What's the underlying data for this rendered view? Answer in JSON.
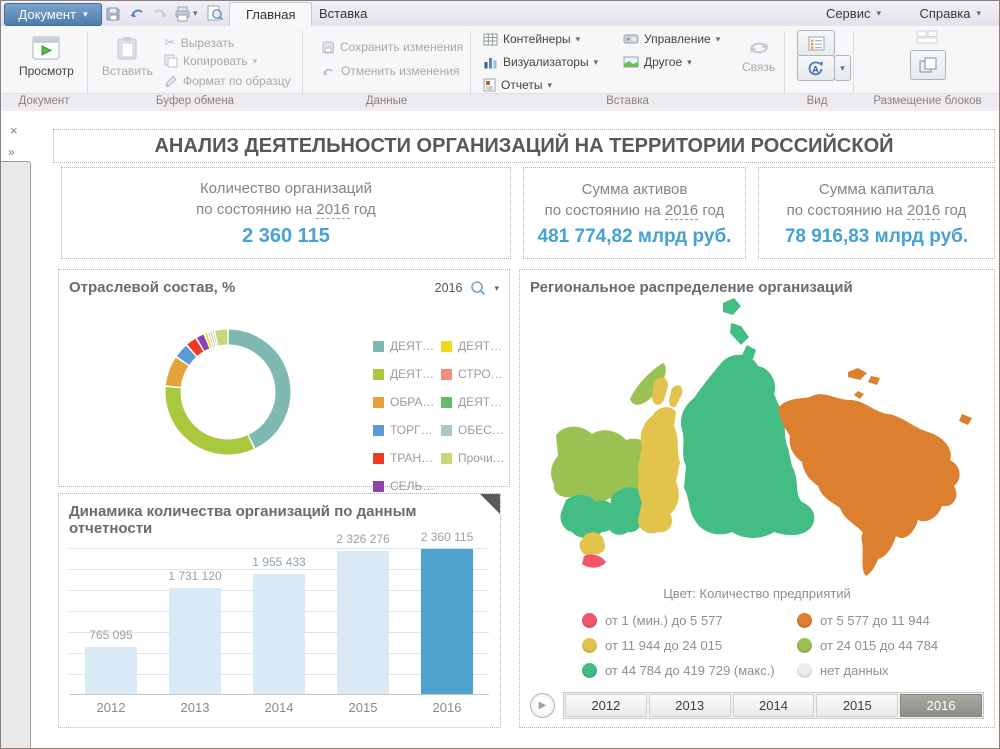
{
  "icons": {
    "chevron_down": "▾",
    "close": "×",
    "expand": "»",
    "play": "▶",
    "scissors": "✂"
  },
  "menubar": {
    "document_button": "Документ",
    "tabs": [
      {
        "label": "Главная",
        "active": true
      },
      {
        "label": "Вставка",
        "active": false
      }
    ],
    "right_menus": {
      "service": "Сервис",
      "help": "Справка"
    }
  },
  "ribbon": {
    "group_labels": {
      "document": "Документ",
      "clipboard": "Буфер обмена",
      "data": "Данные",
      "insert": "Вставка",
      "view": "Вид",
      "layout": "Размещение блоков"
    },
    "buttons": {
      "preview": "Просмотр",
      "paste": "Вставить",
      "cut": "Вырезать",
      "copy": "Копировать",
      "format_painter": "Формат по образцу",
      "save_changes": "Сохранить изменения",
      "undo_changes": "Отменить изменения",
      "containers": "Контейнеры",
      "visualizers": "Визуализаторы",
      "reports": "Отчеты",
      "management": "Управление",
      "other": "Другое",
      "link": "Связь"
    }
  },
  "dashboard": {
    "title": "АНАЛИЗ ДЕЯТЕЛЬНОСТИ ОРГАНИЗАЦИЙ НА ТЕРРИТОРИИ РОССИЙСКОЙ",
    "kpis": [
      {
        "line1": "Количество организаций",
        "prefix": "по состоянию на",
        "year": "2016",
        "suffix": "год",
        "value": "2 360 115"
      },
      {
        "line1": "Сумма активов",
        "prefix": "по состоянию на",
        "year": "2016",
        "suffix": "год",
        "value": "481 774,82 млрд руб."
      },
      {
        "line1": "Сумма капитала",
        "prefix": "по состоянию на",
        "year": "2016",
        "suffix": "год",
        "value": "78 916,83 млрд руб."
      }
    ],
    "value_color": "#45a1d6"
  },
  "chart_data": [
    {
      "type": "pie",
      "subtype": "donut",
      "title": "Отраслевой состав, %",
      "year_filter": "2016",
      "legend_position": "right",
      "segments": [
        {
          "label": "ДЕЯТ…",
          "value": 43.0,
          "color": "#7fb9b2"
        },
        {
          "label": "ДЕЯТ…",
          "value": 33.5,
          "color": "#a9c83d"
        },
        {
          "label": "ОБРА…",
          "value": 8.0,
          "color": "#e5a33c"
        },
        {
          "label": "ТОРГ…",
          "value": 4.0,
          "color": "#5b9bd5"
        },
        {
          "label": "ТРАН…",
          "value": 3.0,
          "color": "#ef3b24"
        },
        {
          "label": "СЕЛЬ…",
          "value": 2.3,
          "color": "#8e44ad"
        },
        {
          "label": "ДЕЯТ…",
          "value": 0.9,
          "color": "#f3d91d"
        },
        {
          "label": "СТРО…",
          "value": 0.6,
          "color": "#f28b82"
        },
        {
          "label": "ДЕЯТ…",
          "value": 0.6,
          "color": "#66bb6a"
        },
        {
          "label": "ОБЕС…",
          "value": 0.6,
          "color": "#aac9c3"
        },
        {
          "label": "Прочи…",
          "value": 3.5,
          "color": "#c5d97a"
        }
      ]
    },
    {
      "type": "bar",
      "title": "Динамика количества организаций по данным отчетности",
      "categories": [
        "2012",
        "2013",
        "2014",
        "2015",
        "2016"
      ],
      "values": [
        765095,
        1731120,
        1955433,
        2326276,
        2360115
      ],
      "value_labels": [
        "765 095",
        "1 731 120",
        "1 955 433",
        "2 326 276",
        "2 360 115"
      ],
      "highlight_index": 4,
      "bar_color": "#d9eaf6",
      "highlight_color": "#4ea3cf",
      "ylim": [
        0,
        2700000
      ],
      "grid": true
    },
    {
      "type": "map",
      "title": "Региональное распределение организаций",
      "legend_title": "Цвет: Количество предприятий",
      "legend": [
        {
          "label": "от 1 (мин.) до 5 577",
          "color": "#f2566b"
        },
        {
          "label": "от 5 577 до 11 944",
          "color": "#dc8030"
        },
        {
          "label": "от 11 944 до 24 015",
          "color": "#e2c44c"
        },
        {
          "label": "от 24 015 до 44 784",
          "color": "#9bc153"
        },
        {
          "label": "от 44 784 до 419 729 (макс.)",
          "color": "#44bd84"
        },
        {
          "label": "нет данных",
          "color": "#ececec"
        }
      ],
      "timeline": {
        "years": [
          "2012",
          "2013",
          "2014",
          "2015",
          "2016"
        ],
        "selected": "2016"
      }
    }
  ]
}
